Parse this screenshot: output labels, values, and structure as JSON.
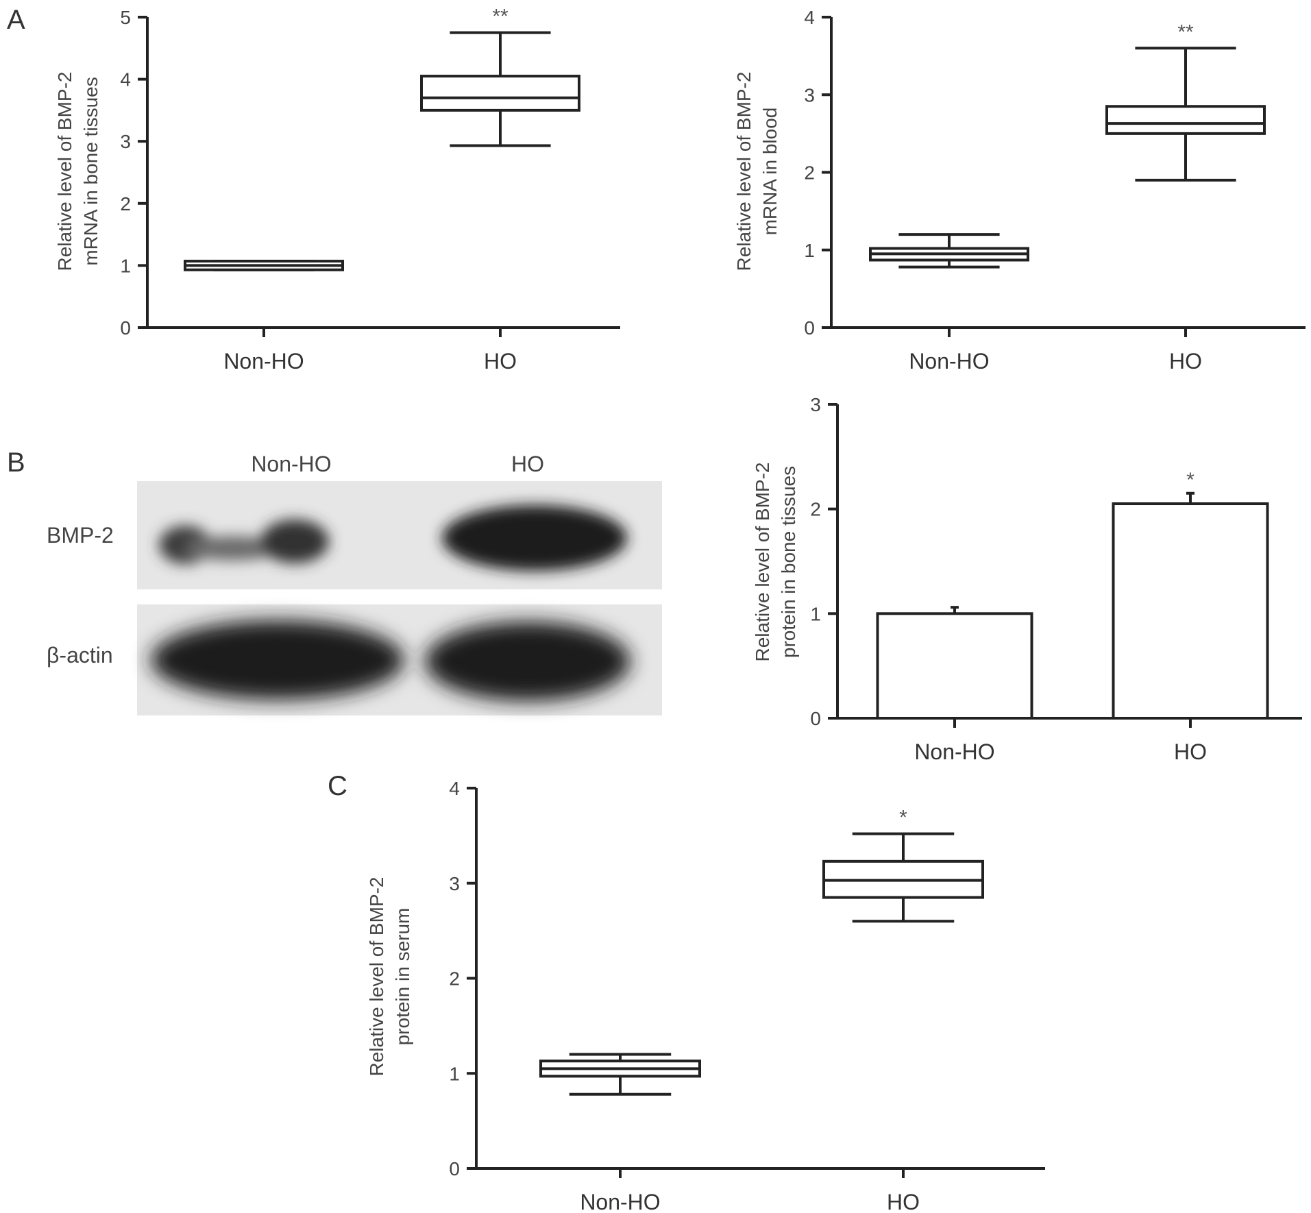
{
  "panel_labels": [
    "A",
    "B",
    "C"
  ],
  "blot": {
    "lane_labels": [
      "Non-HO",
      "HO"
    ],
    "row_labels": [
      "BMP-2",
      "β-actin"
    ]
  },
  "chart_data": [
    {
      "id": "A1",
      "type": "box",
      "panel": "A",
      "categories": [
        "Non-HO",
        "HO"
      ],
      "ylabel": [
        "Relative level of BMP-2",
        "mRNA in bone tissues"
      ],
      "ylim": [
        0,
        5
      ],
      "yticks": [
        0,
        1,
        2,
        3,
        4,
        5
      ],
      "boxes": [
        {
          "min": 0.93,
          "q1": 0.93,
          "median": 1.0,
          "q3": 1.07,
          "max": 1.07,
          "annotation": ""
        },
        {
          "min": 2.93,
          "q1": 3.5,
          "median": 3.7,
          "q3": 4.05,
          "max": 4.75,
          "annotation": "**"
        }
      ]
    },
    {
      "id": "A2",
      "type": "box",
      "panel": "A",
      "categories": [
        "Non-HO",
        "HO"
      ],
      "ylabel": [
        "Relative level of BMP-2",
        "mRNA in blood"
      ],
      "ylim": [
        0,
        4
      ],
      "yticks": [
        0,
        1,
        2,
        3,
        4
      ],
      "boxes": [
        {
          "min": 0.78,
          "q1": 0.87,
          "median": 0.95,
          "q3": 1.02,
          "max": 1.2,
          "annotation": ""
        },
        {
          "min": 1.9,
          "q1": 2.5,
          "median": 2.63,
          "q3": 2.85,
          "max": 3.6,
          "annotation": "**"
        }
      ]
    },
    {
      "id": "B",
      "type": "bar",
      "panel": "B",
      "categories": [
        "Non-HO",
        "HO"
      ],
      "values": [
        1.0,
        2.05
      ],
      "errors": [
        0.06,
        0.1
      ],
      "annotations": [
        "",
        "*"
      ],
      "ylabel": [
        "Relative level of BMP-2",
        "protein in bone tissues"
      ],
      "ylim": [
        0,
        3
      ],
      "yticks": [
        0,
        1,
        2,
        3
      ]
    },
    {
      "id": "C",
      "type": "box",
      "panel": "C",
      "categories": [
        "Non-HO",
        "HO"
      ],
      "ylabel": [
        "Relative level of BMP-2",
        "protein in serum"
      ],
      "ylim": [
        0,
        4
      ],
      "yticks": [
        0,
        1,
        2,
        3,
        4
      ],
      "boxes": [
        {
          "min": 0.78,
          "q1": 0.97,
          "median": 1.05,
          "q3": 1.13,
          "max": 1.2,
          "annotation": ""
        },
        {
          "min": 2.6,
          "q1": 2.85,
          "median": 3.03,
          "q3": 3.23,
          "max": 3.52,
          "annotation": "*"
        }
      ]
    }
  ]
}
